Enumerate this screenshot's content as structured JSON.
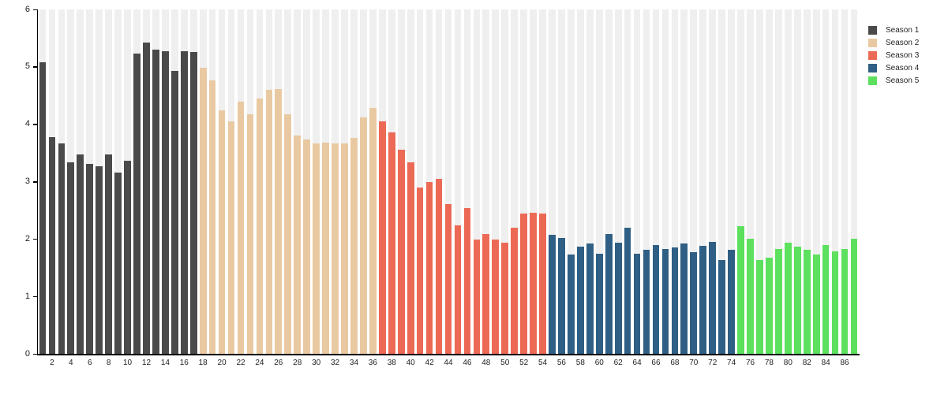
{
  "chart_data": {
    "type": "bar",
    "title": "",
    "xlabel": "",
    "ylabel": "",
    "ylim": [
      0,
      6
    ],
    "y_ticks": [
      0,
      1,
      2,
      3,
      4,
      5,
      6
    ],
    "x_ticks": [
      2,
      4,
      6,
      8,
      10,
      12,
      14,
      16,
      18,
      20,
      22,
      24,
      26,
      28,
      30,
      32,
      34,
      36,
      38,
      40,
      42,
      44,
      46,
      48,
      50,
      52,
      54,
      56,
      58,
      60,
      62,
      64,
      66,
      68,
      70,
      72,
      74,
      76,
      78,
      80,
      82,
      84,
      86
    ],
    "total_bars": 87,
    "grid": "vertical background stripes per bar slot",
    "legend_position": "top-right",
    "series": [
      {
        "name": "Season 1",
        "color": "#4a4a4a",
        "start_episode": 1,
        "values": [
          5.08,
          3.78,
          3.66,
          3.33,
          3.48,
          3.31,
          3.27,
          3.47,
          3.16,
          3.37,
          5.23,
          5.43,
          5.3,
          5.27,
          4.93,
          5.27,
          5.26
        ]
      },
      {
        "name": "Season 2",
        "color": "#e9c9a2",
        "start_episode": 18,
        "values": [
          4.98,
          4.76,
          4.24,
          4.05,
          4.39,
          4.18,
          4.45,
          4.6,
          4.61,
          4.17,
          3.81,
          3.73,
          3.66,
          3.68,
          3.67,
          3.66,
          3.76,
          4.12,
          4.28
        ]
      },
      {
        "name": "Season 3",
        "color": "#ec6a55",
        "start_episode": 37,
        "values": [
          4.05,
          3.86,
          3.55,
          3.33,
          2.9,
          3.0,
          3.05,
          2.61,
          2.24,
          2.54,
          1.99,
          2.09,
          1.99,
          1.93,
          2.19,
          2.45,
          2.46,
          2.45
        ]
      },
      {
        "name": "Season 4",
        "color": "#2f5f84",
        "start_episode": 55,
        "values": [
          2.07,
          2.02,
          1.73,
          1.87,
          1.92,
          1.75,
          2.09,
          1.93,
          2.19,
          1.75,
          1.81,
          1.89,
          1.82,
          1.85,
          1.92,
          1.77,
          1.88,
          1.95,
          1.64,
          1.81
        ]
      },
      {
        "name": "Season 5",
        "color": "#5ce05e",
        "start_episode": 75,
        "values": [
          2.22,
          2.01,
          1.64,
          1.67,
          1.82,
          1.94,
          1.87,
          1.81,
          1.73,
          1.89,
          1.79,
          1.82,
          2.01
        ]
      }
    ],
    "legend": [
      {
        "label": "Season 1",
        "color": "#4a4a4a"
      },
      {
        "label": "Season 2",
        "color": "#e9c9a2"
      },
      {
        "label": "Season 3",
        "color": "#ec6a55"
      },
      {
        "label": "Season 4",
        "color": "#2f5f84"
      },
      {
        "label": "Season 5",
        "color": "#5ce05e"
      }
    ]
  },
  "style": {
    "background": "#ffffff",
    "stripe_color": "#efefef",
    "axis_color": "#000000",
    "label_color": "#1f1f1f"
  }
}
